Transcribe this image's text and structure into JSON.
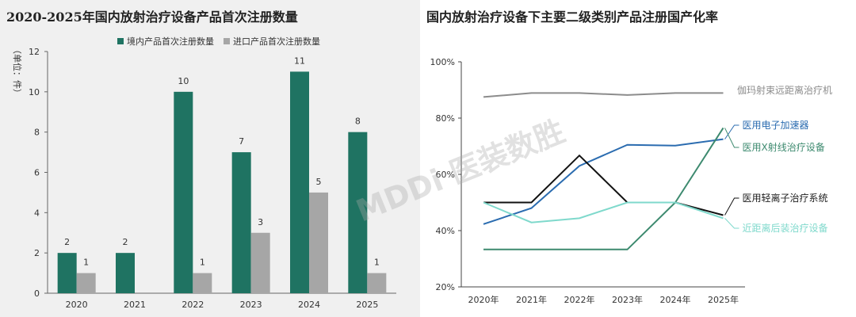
{
  "watermark": "MDDi 医装数胜",
  "chart_data": [
    {
      "type": "bar",
      "title": "2020-2025年国内放射治疗设备产品首次注册数量",
      "ylabel": "（单位：件）",
      "ylim": [
        0,
        12
      ],
      "yticks": [
        0,
        2,
        4,
        6,
        8,
        10,
        12
      ],
      "categories": [
        "2020",
        "2021",
        "2022",
        "2023",
        "2024",
        "2025"
      ],
      "legend_position": "top",
      "grid": false,
      "series": [
        {
          "name": "境内产品首次注册数量",
          "color": "#1f7362",
          "values": [
            2,
            2,
            10,
            7,
            11,
            8
          ]
        },
        {
          "name": "进口产品首次注册数量",
          "color": "#a6a6a6",
          "values": [
            1,
            null,
            1,
            3,
            5,
            1
          ]
        }
      ]
    },
    {
      "type": "line",
      "title": "国内放射治疗设备下主要二级类别产品注册国产化率",
      "categories": [
        "2020年",
        "2021年",
        "2022年",
        "2023年",
        "2024年",
        "2025年"
      ],
      "ylim": [
        20,
        100
      ],
      "yticks": [
        "20%",
        "40%",
        "60%",
        "80%",
        "100%"
      ],
      "yticks_values": [
        20,
        40,
        60,
        80,
        100
      ],
      "grid": false,
      "legend_position": "right (inline labels)",
      "series": [
        {
          "name": "伽玛射束远距离治疗机",
          "color": "#8c8c8c",
          "values": [
            87.5,
            88.9,
            88.9,
            88.2,
            88.9,
            88.9
          ]
        },
        {
          "name": "医用电子加速器",
          "color": "#2b6cb0",
          "values": [
            42.3,
            48.0,
            63.0,
            70.5,
            70.2,
            72.5
          ]
        },
        {
          "name": "医用X射线治疗设备",
          "color": "#3d8a6f",
          "values": [
            33.3,
            33.3,
            33.3,
            33.3,
            50.0,
            76.5
          ]
        },
        {
          "name": "医用轻离子治疗系统",
          "color": "#111111",
          "values": [
            50.0,
            50.0,
            66.7,
            50.0,
            50.0,
            45.5
          ]
        },
        {
          "name": "近距离后装治疗设备",
          "color": "#7fd9cc",
          "values": [
            50.0,
            42.9,
            44.4,
            50.0,
            50.0,
            44.4
          ]
        }
      ]
    }
  ]
}
